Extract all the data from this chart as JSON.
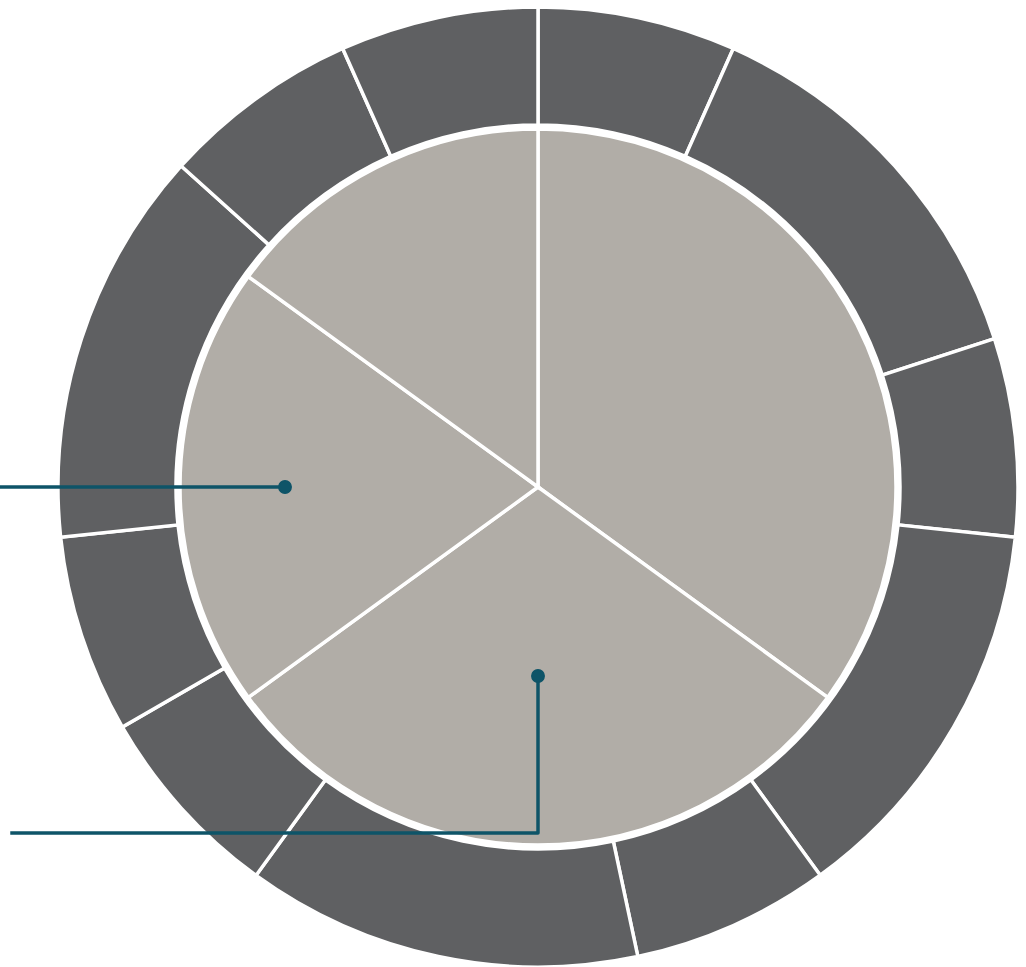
{
  "chart_data": {
    "type": "donut",
    "series": [
      {
        "type": "pie",
        "values": [
          35,
          30,
          20,
          15
        ],
        "colors": [
          "#b1ada7",
          "#b1ada7",
          "#b1ada7",
          "#b1ada7"
        ]
      },
      {
        "values": [
          6.67,
          13.33,
          6.67,
          13.33,
          6.67,
          13.33,
          6.67,
          6.67,
          13.33,
          6.67,
          6.67
        ],
        "colors": [
          "#5f6062",
          "#5f6062",
          "#5f6062",
          "#5f6062",
          "#5f6062",
          "#5f6062",
          "#5f6062",
          "#5f6062",
          "#5f6062",
          "#5f6062",
          "#5f6062"
        ]
      }
    ]
  }
}
